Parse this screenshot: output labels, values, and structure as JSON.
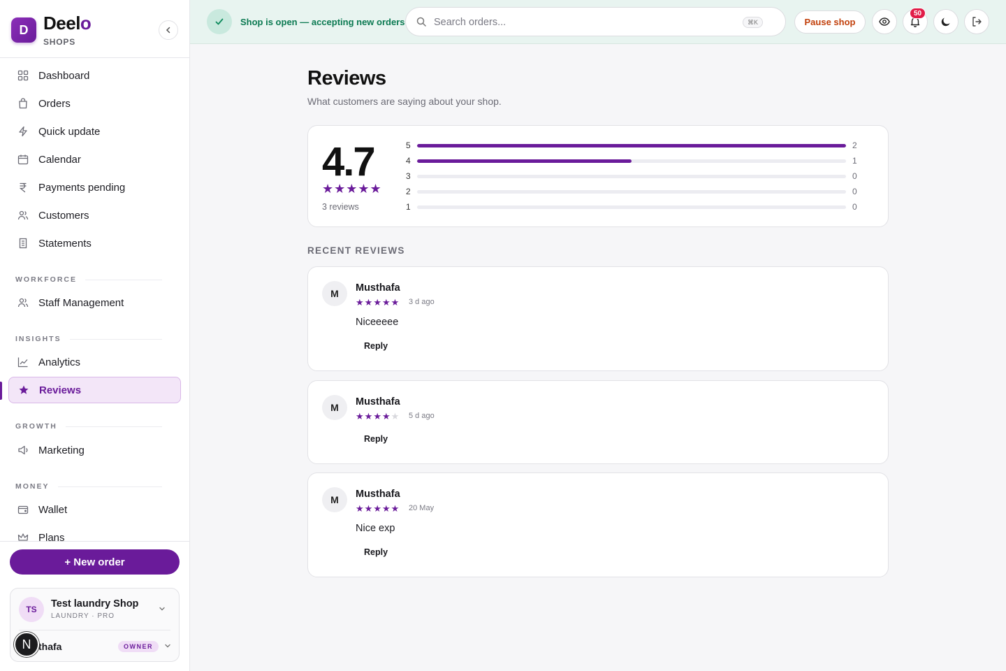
{
  "brand": {
    "name_main": "Deel",
    "name_accent": "o",
    "sub": "SHOPS",
    "logo_letter": "D"
  },
  "nav": {
    "main": [
      {
        "label": "Dashboard",
        "icon": "grid-icon"
      },
      {
        "label": "Orders",
        "icon": "bag-icon"
      },
      {
        "label": "Quick update",
        "icon": "bolt-icon"
      },
      {
        "label": "Calendar",
        "icon": "calendar-icon"
      },
      {
        "label": "Payments pending",
        "icon": "rupee-icon"
      },
      {
        "label": "Customers",
        "icon": "users-icon"
      },
      {
        "label": "Statements",
        "icon": "receipt-icon"
      }
    ],
    "sections": {
      "workforce": "WORKFORCE",
      "insights": "INSIGHTS",
      "growth": "GROWTH",
      "money": "MONEY"
    },
    "workforce": [
      {
        "label": "Staff Management",
        "icon": "users-icon"
      }
    ],
    "insights": [
      {
        "label": "Analytics",
        "icon": "chart-line-icon"
      },
      {
        "label": "Reviews",
        "icon": "star-icon",
        "active": true
      }
    ],
    "growth": [
      {
        "label": "Marketing",
        "icon": "megaphone-icon"
      }
    ],
    "money": [
      {
        "label": "Wallet",
        "icon": "wallet-icon"
      },
      {
        "label": "Plans",
        "icon": "crown-icon"
      }
    ]
  },
  "sidebar_bottom": {
    "new_order_label": "+ New order",
    "shop": {
      "initials": "TS",
      "name": "Test laundry Shop",
      "meta": "LAUNDRY · PRO"
    },
    "user": {
      "name_visible": "thafa",
      "role": "OWNER"
    },
    "dev_badge": "N"
  },
  "topbar": {
    "status_text": "Shop is open — accepting new orders",
    "search_placeholder": "Search orders...",
    "search_shortcut": "⌘K",
    "pause_label": "Pause shop",
    "notification_count": "50"
  },
  "page": {
    "title": "Reviews",
    "subtitle": "What customers are saying about your shop."
  },
  "summary": {
    "average": "4.7",
    "stars": "★★★★★",
    "count_text": "3 reviews",
    "distribution": [
      {
        "stars": "5",
        "count": "2",
        "fraction": 1.0
      },
      {
        "stars": "4",
        "count": "1",
        "fraction": 0.5
      },
      {
        "stars": "3",
        "count": "0",
        "fraction": 0
      },
      {
        "stars": "2",
        "count": "0",
        "fraction": 0
      },
      {
        "stars": "1",
        "count": "0",
        "fraction": 0
      }
    ]
  },
  "recent_heading": "RECENT REVIEWS",
  "reviews": [
    {
      "initial": "M",
      "name": "Musthafa",
      "rating": 5,
      "date": "3 d ago",
      "text": "Niceeeee",
      "reply_label": "Reply"
    },
    {
      "initial": "M",
      "name": "Musthafa",
      "rating": 4,
      "date": "5 d ago",
      "text": "",
      "reply_label": "Reply"
    },
    {
      "initial": "M",
      "name": "Musthafa",
      "rating": 5,
      "date": "20 May",
      "text": "Nice exp",
      "reply_label": "Reply"
    }
  ],
  "colors": {
    "accent": "#6a1b9a",
    "open_green": "#0c7a52",
    "pause_orange": "#c2410c",
    "badge_red": "#e11d48"
  }
}
